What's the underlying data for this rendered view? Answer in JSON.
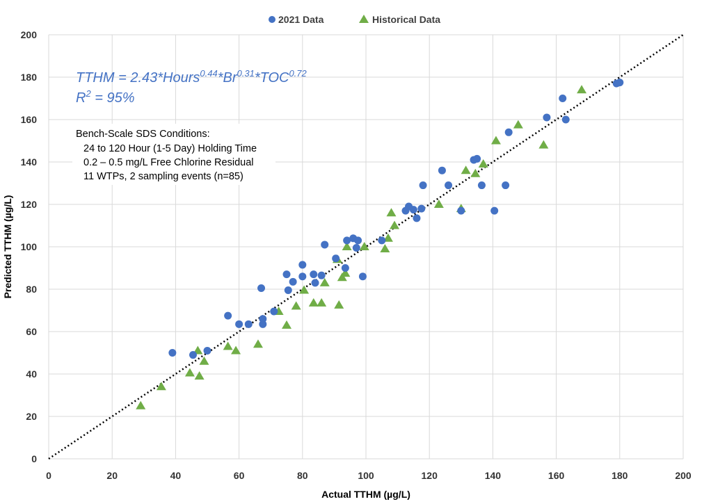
{
  "chart_data": {
    "type": "scatter",
    "xlabel": "Actual TTHM (µg/L)",
    "ylabel": "Predicted TTHM (µg/L)",
    "xlim": [
      0,
      200
    ],
    "ylim": [
      0,
      200
    ],
    "x_ticks": [
      0,
      20,
      40,
      60,
      80,
      100,
      120,
      140,
      160,
      180,
      200
    ],
    "y_ticks": [
      0,
      20,
      40,
      60,
      80,
      100,
      120,
      140,
      160,
      180,
      200
    ],
    "grid": true,
    "legend_position": "top-center",
    "colors": {
      "s2021": "#4472C4",
      "historical": "#70AD47",
      "equation": "#4472C4",
      "grid": "#D9D9D9",
      "line": "#000000"
    },
    "equation": {
      "lhs": "TTHM = 2.43*Hours",
      "exp1": "0.44",
      "mid1": "*Br",
      "exp2": "0.31",
      "mid2": "*TOC",
      "exp3": "0.72",
      "r2_prefix": "R",
      "r2_exp": "2",
      "r2_suffix": " = 95%"
    },
    "notes": [
      "Bench-Scale SDS Conditions:",
      "24 to 120 Hour (1-5 Day) Holding Time",
      "0.2 – 0.5 mg/L Free Chlorine Residual",
      "11 WTPs, 2 sampling events (n=85)"
    ],
    "reference_line": {
      "name": "1:1 line",
      "from": [
        0,
        0
      ],
      "to": [
        200,
        200
      ],
      "style": "dotted"
    },
    "series": [
      {
        "name": "2021 Data",
        "marker": "circle",
        "points": [
          [
            39,
            50
          ],
          [
            45.5,
            49
          ],
          [
            50,
            51
          ],
          [
            56.5,
            67.5
          ],
          [
            60,
            63.5
          ],
          [
            63,
            63.5
          ],
          [
            67,
            80.5
          ],
          [
            67.5,
            63.5
          ],
          [
            67.5,
            66
          ],
          [
            71,
            69.5
          ],
          [
            75,
            87
          ],
          [
            75.5,
            79.5
          ],
          [
            77,
            83.5
          ],
          [
            80,
            91.5
          ],
          [
            80,
            86
          ],
          [
            83.5,
            87
          ],
          [
            84,
            83
          ],
          [
            86,
            86.5
          ],
          [
            87,
            101
          ],
          [
            90.5,
            94.5
          ],
          [
            93.5,
            90
          ],
          [
            94,
            103
          ],
          [
            96,
            104
          ],
          [
            97,
            99.5
          ],
          [
            97.5,
            103
          ],
          [
            99,
            86
          ],
          [
            105,
            103
          ],
          [
            112.5,
            117
          ],
          [
            113.5,
            119
          ],
          [
            115,
            117.5
          ],
          [
            116,
            113.5
          ],
          [
            117.5,
            118
          ],
          [
            118,
            129
          ],
          [
            124,
            136
          ],
          [
            126,
            129
          ],
          [
            130,
            117
          ],
          [
            134,
            141
          ],
          [
            135,
            141.5
          ],
          [
            136.5,
            129
          ],
          [
            140.5,
            117
          ],
          [
            144,
            129
          ],
          [
            145,
            154
          ],
          [
            157,
            161
          ],
          [
            162,
            170
          ],
          [
            163,
            160
          ],
          [
            179,
            177
          ],
          [
            180,
            177.5
          ]
        ]
      },
      {
        "name": "Historical Data",
        "marker": "triangle",
        "points": [
          [
            29,
            25
          ],
          [
            35.5,
            34
          ],
          [
            44.5,
            40.5
          ],
          [
            47,
            51
          ],
          [
            47.5,
            39
          ],
          [
            49,
            46
          ],
          [
            56.5,
            53
          ],
          [
            59,
            51
          ],
          [
            66,
            54
          ],
          [
            72.5,
            69.5
          ],
          [
            75,
            63
          ],
          [
            78,
            72
          ],
          [
            80.5,
            79.5
          ],
          [
            83.5,
            73.5
          ],
          [
            86,
            73.5
          ],
          [
            87,
            83
          ],
          [
            91,
            94
          ],
          [
            91.5,
            72.5
          ],
          [
            92.5,
            85.5
          ],
          [
            93.5,
            87.5
          ],
          [
            94,
            100
          ],
          [
            99.5,
            100
          ],
          [
            106,
            99
          ],
          [
            107,
            104
          ],
          [
            108,
            116
          ],
          [
            109,
            110
          ],
          [
            123,
            120
          ],
          [
            130,
            118
          ],
          [
            131.5,
            136
          ],
          [
            134.5,
            134.5
          ],
          [
            137,
            139
          ],
          [
            141,
            150
          ],
          [
            148,
            157.5
          ],
          [
            156,
            148
          ],
          [
            168,
            174
          ]
        ]
      }
    ]
  }
}
